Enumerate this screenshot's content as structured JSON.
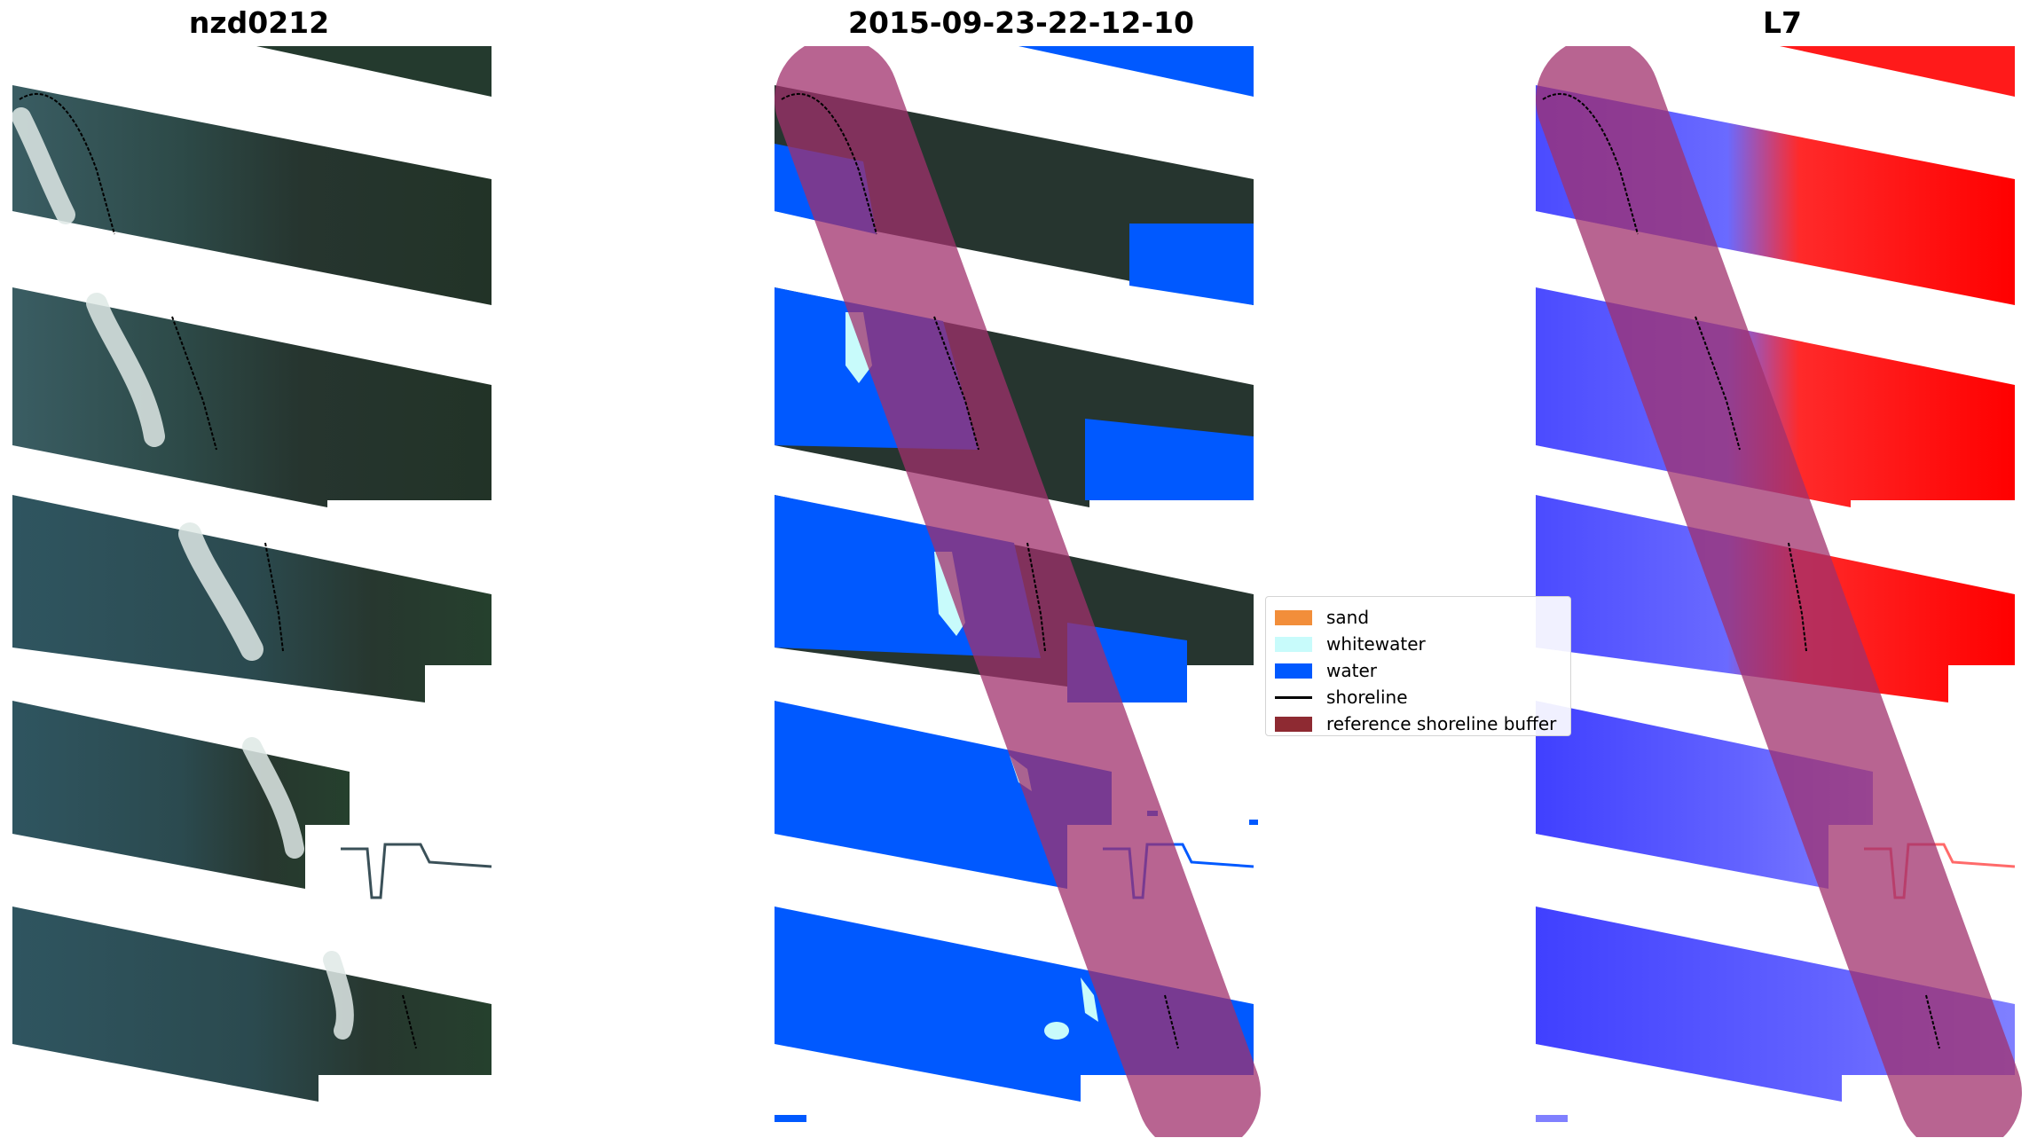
{
  "panels": [
    {
      "id": "rgb",
      "title": "nzd0212"
    },
    {
      "id": "classified",
      "title": "2015-09-23-22-12-10"
    },
    {
      "id": "index",
      "title": "L7"
    }
  ],
  "legend": {
    "items": [
      {
        "label": "sand",
        "color": "#f28e3a",
        "kind": "patch"
      },
      {
        "label": "whitewater",
        "color": "#c8fbfb",
        "kind": "patch"
      },
      {
        "label": "water",
        "color": "#0059ff",
        "kind": "patch"
      },
      {
        "label": "shoreline",
        "color": "#000000",
        "kind": "line"
      },
      {
        "label": "reference shoreline buffer",
        "color": "#8e2a32",
        "kind": "patch"
      }
    ]
  },
  "colors": {
    "land_dark": "#2a3a36",
    "water_teal": "#2f5358",
    "water_blue": "#0059ff",
    "whitewater": "#c8fbfb",
    "buffer": "#a0306c",
    "index_land": "#ff1a1a",
    "index_water": "#4747ff"
  }
}
